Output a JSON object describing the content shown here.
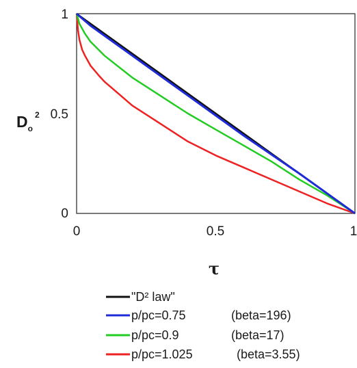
{
  "chart_data": {
    "type": "line",
    "xlabel": "τ",
    "ylabel": {
      "main": "D",
      "sub": "o",
      "sup": "2"
    },
    "xlim": [
      0,
      1
    ],
    "ylim": [
      0,
      1
    ],
    "xticks": [
      "0",
      "0.5",
      "1"
    ],
    "yticks": [
      "0",
      "0.5",
      "1"
    ],
    "grid": false,
    "legend_placement": "below",
    "series": [
      {
        "name": "\"D² law\"",
        "beta": "",
        "color": "#111111",
        "x": [
          0,
          1
        ],
        "y": [
          1,
          0
        ]
      },
      {
        "name": "p/pc=0.75",
        "beta": "(beta=196)",
        "color": "#1f2bd6",
        "x": [
          0,
          0.05,
          0.1,
          0.2,
          0.3,
          0.4,
          0.5,
          0.6,
          0.7,
          0.8,
          0.9,
          1.0
        ],
        "y": [
          1,
          0.94,
          0.89,
          0.79,
          0.69,
          0.59,
          0.49,
          0.39,
          0.295,
          0.2,
          0.1,
          0
        ]
      },
      {
        "name": "p/pc=0.9",
        "beta": "(beta=17)",
        "color": "#22cc22",
        "x": [
          0,
          0.01,
          0.03,
          0.05,
          0.1,
          0.2,
          0.3,
          0.4,
          0.5,
          0.6,
          0.7,
          0.8,
          0.9,
          1.0
        ],
        "y": [
          1,
          0.95,
          0.9,
          0.86,
          0.79,
          0.68,
          0.59,
          0.5,
          0.42,
          0.34,
          0.26,
          0.17,
          0.09,
          0
        ]
      },
      {
        "name": "p/pc=1.025",
        "beta": "(beta=3.55)",
        "color": "#ee2222",
        "x": [
          0,
          0.005,
          0.01,
          0.02,
          0.03,
          0.05,
          0.08,
          0.1,
          0.15,
          0.2,
          0.3,
          0.4,
          0.5,
          0.6,
          0.7,
          0.8,
          0.9,
          1.0
        ],
        "y": [
          1,
          0.92,
          0.87,
          0.82,
          0.79,
          0.74,
          0.69,
          0.66,
          0.6,
          0.54,
          0.45,
          0.36,
          0.29,
          0.23,
          0.17,
          0.11,
          0.05,
          0
        ]
      }
    ]
  }
}
